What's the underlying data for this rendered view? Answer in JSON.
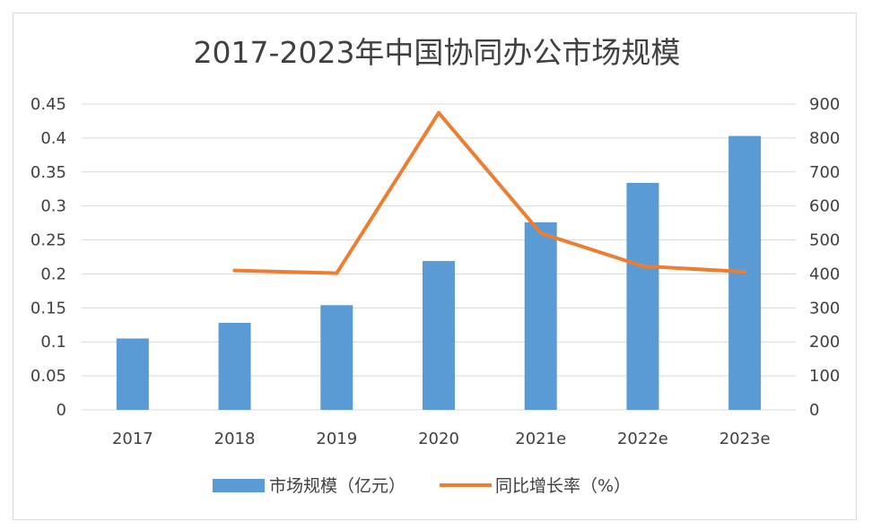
{
  "chart_data": {
    "type": "bar",
    "title": "2017-2023年中国协同办公市场规模",
    "categories": [
      "2017",
      "2018",
      "2019",
      "2020",
      "2021e",
      "2022e",
      "2023e"
    ],
    "series": [
      {
        "name": "市场规模（亿元）",
        "type": "bar",
        "axis": "left",
        "values": [
          0.105,
          0.128,
          0.154,
          0.219,
          0.276,
          0.334,
          0.403
        ]
      },
      {
        "name": "同比增长率（%）",
        "type": "line",
        "axis": "right",
        "values": [
          null,
          410,
          402,
          874,
          520,
          423,
          406
        ]
      }
    ],
    "y_left": {
      "ticks": [
        "0",
        "0.05",
        "0.1",
        "0.15",
        "0.2",
        "0.25",
        "0.3",
        "0.35",
        "0.4",
        "0.45"
      ],
      "ylim": [
        0,
        0.45
      ]
    },
    "y_right": {
      "ticks": [
        "0",
        "100",
        "200",
        "300",
        "400",
        "500",
        "600",
        "700",
        "800",
        "900"
      ],
      "ylim": [
        0,
        900
      ]
    },
    "grid": true,
    "legend": "bottom",
    "colors": {
      "bar": "#5b9bd5",
      "line": "#ed7d31",
      "grid": "#d9d9d9",
      "text": "#404040"
    }
  }
}
